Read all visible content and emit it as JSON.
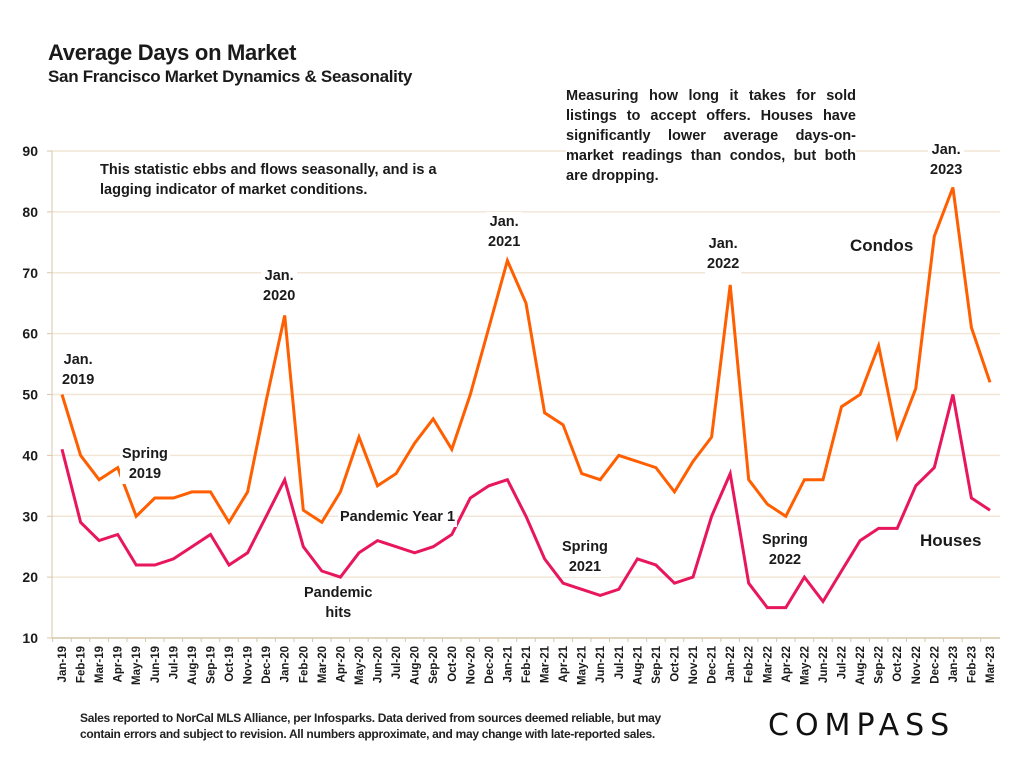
{
  "header": {
    "title": "Average Days on Market",
    "subtitle": "San Francisco Market Dynamics & Seasonality"
  },
  "notes": {
    "left": "This statistic ebbs and flows seasonally, and is a lagging indicator of market conditions.",
    "right": "Measuring how long it takes for sold listings to accept offers. Houses have significantly lower average days-on-market readings than condos, but both are dropping."
  },
  "annotations": [
    {
      "id": "jan2019",
      "line1": "Jan.",
      "line2": "2019"
    },
    {
      "id": "spring2019",
      "line1": "Spring",
      "line2": "2019"
    },
    {
      "id": "jan2020",
      "line1": "Jan.",
      "line2": "2020"
    },
    {
      "id": "pandemic-hits",
      "line1": "Pandemic",
      "line2": "hits"
    },
    {
      "id": "pandemic-year1",
      "line1": "Pandemic Year 1",
      "line2": ""
    },
    {
      "id": "jan2021",
      "line1": "Jan.",
      "line2": "2021"
    },
    {
      "id": "spring2021",
      "line1": "Spring",
      "line2": "2021"
    },
    {
      "id": "jan2022",
      "line1": "Jan.",
      "line2": "2022"
    },
    {
      "id": "spring2022",
      "line1": "Spring",
      "line2": "2022"
    },
    {
      "id": "jan2023",
      "line1": "Jan.",
      "line2": "2023"
    }
  ],
  "footer": {
    "line1": "Sales reported to NorCal MLS Alliance, per Infosparks. Data derived from sources deemed reliable, but may",
    "line2": "contain errors and subject to revision. All numbers approximate, and may change with late-reported sales.",
    "logo": "COMPASS"
  },
  "colors": {
    "condos": "#FF5F00",
    "houses": "#E8175D",
    "grid": "#F2E6D6",
    "axis": "#D9C7A8"
  },
  "chart_data": {
    "type": "line",
    "title": "Average Days on Market",
    "subtitle": "San Francisco Market Dynamics & Seasonality",
    "xlabel": "",
    "ylabel": "",
    "ylim": [
      10,
      90
    ],
    "yticks": [
      10,
      20,
      30,
      40,
      50,
      60,
      70,
      80,
      90
    ],
    "grid": true,
    "legend": "inline-right",
    "categories": [
      "Jan-19",
      "Feb-19",
      "Mar-19",
      "Apr-19",
      "May-19",
      "Jun-19",
      "Jul-19",
      "Aug-19",
      "Sep-19",
      "Oct-19",
      "Nov-19",
      "Dec-19",
      "Jan-20",
      "Feb-20",
      "Mar-20",
      "Apr-20",
      "May-20",
      "Jun-20",
      "Jul-20",
      "Aug-20",
      "Sep-20",
      "Oct-20",
      "Nov-20",
      "Dec-20",
      "Jan-21",
      "Feb-21",
      "Mar-21",
      "Apr-21",
      "May-21",
      "Jun-21",
      "Jul-21",
      "Aug-21",
      "Sep-21",
      "Oct-21",
      "Nov-21",
      "Dec-21",
      "Jan-22",
      "Feb-22",
      "Mar-22",
      "Apr-22",
      "May-22",
      "Jun-22",
      "Jul-22",
      "Aug-22",
      "Sep-22",
      "Oct-22",
      "Nov-22",
      "Dec-22",
      "Jan-23",
      "Feb-23",
      "Mar-23"
    ],
    "series": [
      {
        "name": "Condos",
        "values": [
          50,
          40,
          36,
          38,
          30,
          33,
          33,
          34,
          34,
          29,
          34,
          49,
          63,
          31,
          29,
          34,
          43,
          35,
          37,
          42,
          46,
          41,
          50,
          61,
          72,
          65,
          47,
          45,
          37,
          36,
          40,
          39,
          38,
          34,
          39,
          43,
          68,
          36,
          32,
          30,
          36,
          36,
          48,
          50,
          58,
          43,
          51,
          76,
          84,
          61,
          52
        ]
      },
      {
        "name": "Houses",
        "values": [
          41,
          29,
          26,
          27,
          22,
          22,
          23,
          25,
          27,
          22,
          24,
          30,
          36,
          25,
          21,
          20,
          24,
          26,
          25,
          24,
          25,
          27,
          33,
          35,
          36,
          30,
          23,
          19,
          18,
          17,
          18,
          23,
          22,
          19,
          20,
          30,
          37,
          19,
          15,
          15,
          20,
          16,
          21,
          26,
          28,
          28,
          35,
          38,
          50,
          33,
          31
        ]
      }
    ]
  }
}
